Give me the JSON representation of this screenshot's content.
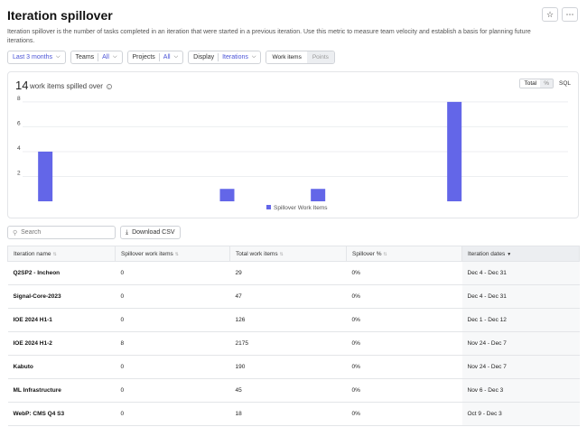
{
  "header": {
    "title": "Iteration spillover",
    "star_icon": "star-icon",
    "more_icon": "more-icon"
  },
  "description": "Iteration spillover is the number of tasks completed in an iteration that were started in a previous iteration. Use this metric to measure team velocity and establish a basis for planning future iterations.",
  "filters": {
    "range": "Last 3 months",
    "teams_label": "Teams",
    "teams_value": "All",
    "projects_label": "Projects",
    "projects_value": "All",
    "display_label": "Display",
    "display_value": "Iterations",
    "unit_options": [
      "Work items",
      "Points"
    ],
    "unit_selected": "Work items"
  },
  "summary": {
    "count": "14",
    "label": "work items spilled over",
    "toggle_total": "Total",
    "toggle_percent": "%",
    "sql_label": "SQL"
  },
  "chart_data": {
    "type": "bar",
    "series": [
      {
        "name": "Spillover Work Items",
        "color": "#6366e8",
        "values": [
          4,
          0,
          0,
          0,
          1,
          0,
          1,
          0,
          0,
          8,
          0,
          0
        ]
      }
    ],
    "y_ticks": [
      "2",
      "4",
      "6",
      "8"
    ],
    "ylim": [
      0,
      8.5
    ],
    "legend_position": "bottom-center",
    "grid": true
  },
  "toolbar": {
    "search_placeholder": "Search",
    "download_label": "Download CSV"
  },
  "table": {
    "columns": [
      "Iteration name",
      "Spillover work items",
      "Total work items",
      "Spillover %",
      "Iteration dates"
    ],
    "sorted_column": 4,
    "rows": [
      [
        "Q2SP2 - Incheon",
        "0",
        "29",
        "0%",
        "Dec 4 - Dec 31"
      ],
      [
        "Signal-Core-2023",
        "0",
        "47",
        "0%",
        "Dec 4 - Dec 31"
      ],
      [
        "IOE 2024 H1-1",
        "0",
        "126",
        "0%",
        "Dec 1 - Dec 12"
      ],
      [
        "IOE 2024 H1-2",
        "8",
        "2175",
        "0%",
        "Nov 24 - Dec 7"
      ],
      [
        "Kabuto",
        "0",
        "190",
        "0%",
        "Nov 24 - Dec 7"
      ],
      [
        "ML Infrastructure",
        "0",
        "45",
        "0%",
        "Nov 6 - Dec 3"
      ],
      [
        "WebP: CMS Q4 S3",
        "0",
        "18",
        "0%",
        "Oct 9 - Dec 3"
      ]
    ]
  }
}
